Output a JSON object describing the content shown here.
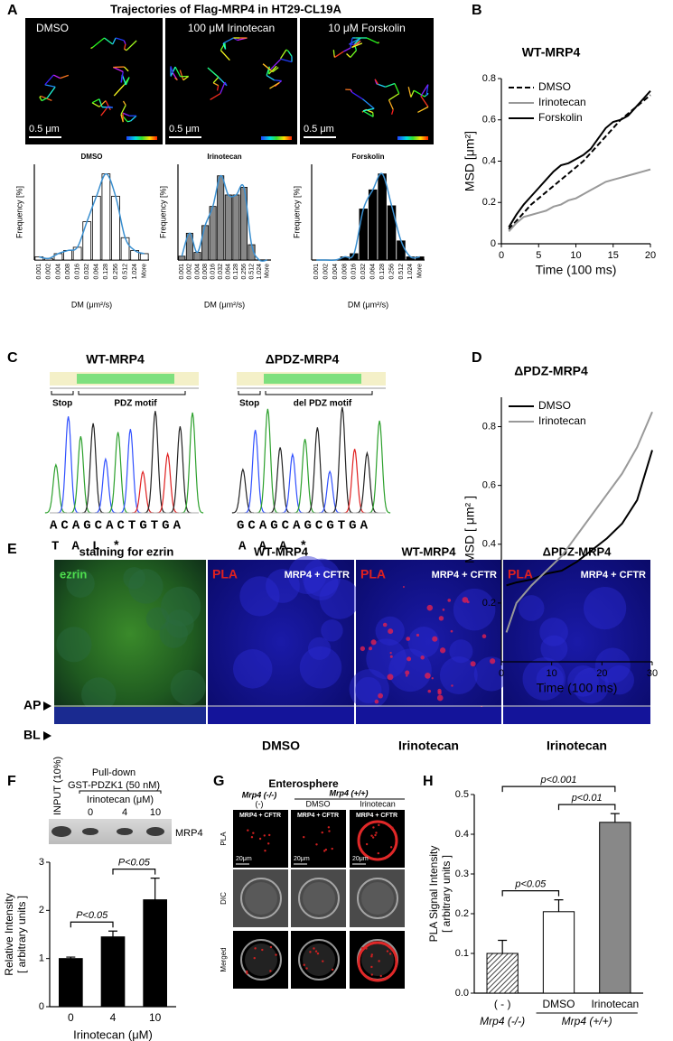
{
  "panel_labels": [
    "A",
    "B",
    "C",
    "D",
    "E",
    "F",
    "G",
    "H"
  ],
  "panel_a": {
    "title": "Trajectories of Flag-MRP4 in HT29-CL19A",
    "image_labels": [
      "DMSO",
      "100 μM Irinotecan",
      "10 μM Forskolin"
    ],
    "scale_bars": [
      "0.5 μm",
      "0.5 μm",
      "0.5 μm"
    ]
  },
  "panel_c": {
    "constructs": [
      {
        "name": "WT-MRP4",
        "regions": [
          "Stop",
          "PDZ motif"
        ],
        "sequence": "ACAGCACTGTGA",
        "translation": "T A L *"
      },
      {
        "name": "ΔPDZ-MRP4",
        "regions": [
          "Stop",
          "del PDZ motif"
        ],
        "sequence": "GCAGCAGCGTGA",
        "translation": "A A A *"
      }
    ]
  },
  "panel_e": {
    "heading": "staining for ezrin",
    "stain": "ezrin",
    "columns": [
      {
        "construct": "WT-MRP4",
        "assay": "PLA",
        "target": "MRP4 + CFTR",
        "treatment": "DMSO"
      },
      {
        "construct": "WT-MRP4",
        "assay": "PLA",
        "target": "MRP4 + CFTR",
        "treatment": "Irinotecan"
      },
      {
        "construct": "ΔPDZ-MRP4",
        "assay": "PLA",
        "target": "MRP4 + CFTR",
        "treatment": "Irinotecan"
      }
    ],
    "section_markers": [
      "AP",
      "BL"
    ]
  },
  "panel_f": {
    "input_lane": "INPUT (10%)",
    "pulldown": [
      "Pull-down",
      "GST-PDZK1 (50 nM)"
    ],
    "dose_title": "Irinotecan (μM)",
    "doses": [
      "0",
      "4",
      "10"
    ],
    "band": "MRP4"
  },
  "panel_g": {
    "title": "Enterosphere",
    "genotypes": [
      "Mrp4 (-/-)",
      "Mrp4 (+/+)"
    ],
    "conditions": [
      "(-)",
      "DMSO",
      "Irinotecan"
    ],
    "rows": [
      "PLA",
      "DIC",
      "Merged"
    ],
    "target": "MRP4 + CFTR",
    "scale_bar": "20μm"
  },
  "chart_data": [
    {
      "type": "bar",
      "title": "DMSO",
      "categories": [
        "0.001",
        "0.002",
        "0.004",
        "0.008",
        "0.016",
        "0.032",
        "0.064",
        "0.128",
        "0.256",
        "0.512",
        "1.024",
        "More"
      ],
      "values": [
        1,
        0.5,
        2,
        3,
        4,
        12,
        20,
        27,
        20,
        7,
        3,
        2
      ],
      "color": "#ffffff",
      "fit_color": "#3a8fd0",
      "xlabel": "DM (μm²/s)",
      "ylabel": "Frequency [%]",
      "ylim": [
        0,
        30
      ]
    },
    {
      "type": "bar",
      "title": "Irinotecan",
      "categories": [
        "0.001",
        "0.002",
        "0.004",
        "0.008",
        "0.016",
        "0.032",
        "0.064",
        "0.128",
        "0.256",
        "0.512",
        "1.024",
        "More"
      ],
      "values": [
        1,
        7,
        2,
        9,
        14,
        22,
        17,
        17,
        19,
        4,
        0,
        0
      ],
      "color": "#888888",
      "fit_color": "#3a8fd0",
      "xlabel": "DM (μm²/s)",
      "ylabel": "Frequency [%]",
      "ylim": [
        0,
        25
      ]
    },
    {
      "type": "bar",
      "title": "Forskolin",
      "categories": [
        "0.001",
        "0.002",
        "0.004",
        "0.008",
        "0.016",
        "0.032",
        "0.064",
        "0.128",
        "0.256",
        "0.512",
        "1.024",
        "More"
      ],
      "values": [
        0,
        0,
        0,
        1,
        2,
        16,
        22,
        27,
        17,
        6,
        1,
        1
      ],
      "color": "#000000",
      "fit_color": "#3a8fd0",
      "xlabel": "DM (μm²/s)",
      "ylabel": "Frequency [%]",
      "ylim": [
        0,
        30
      ]
    },
    {
      "type": "line",
      "title": "WT-MRP4",
      "x": [
        1,
        2,
        3,
        4,
        5,
        6,
        7,
        8,
        9,
        10,
        11,
        12,
        13,
        14,
        15,
        16,
        17,
        18,
        19,
        20
      ],
      "series": [
        {
          "name": "DMSO",
          "color": "#000000",
          "dash": true,
          "values": [
            0.07,
            0.11,
            0.15,
            0.19,
            0.22,
            0.25,
            0.28,
            0.31,
            0.34,
            0.37,
            0.4,
            0.44,
            0.48,
            0.52,
            0.56,
            0.6,
            0.63,
            0.66,
            0.69,
            0.72
          ]
        },
        {
          "name": "Irinotecan",
          "color": "#999999",
          "dash": false,
          "values": [
            0.06,
            0.1,
            0.13,
            0.14,
            0.15,
            0.16,
            0.18,
            0.19,
            0.21,
            0.22,
            0.24,
            0.26,
            0.28,
            0.3,
            0.31,
            0.32,
            0.33,
            0.34,
            0.35,
            0.36
          ]
        },
        {
          "name": "Forskolin",
          "color": "#000000",
          "dash": false,
          "values": [
            0.08,
            0.14,
            0.19,
            0.23,
            0.27,
            0.31,
            0.35,
            0.38,
            0.39,
            0.41,
            0.43,
            0.46,
            0.51,
            0.56,
            0.59,
            0.6,
            0.62,
            0.66,
            0.7,
            0.74
          ]
        }
      ],
      "xlabel": "Time (100 ms)",
      "ylabel": "MSD [μm²]",
      "xlim": [
        0,
        20
      ],
      "xticks": [
        0,
        5,
        10,
        15,
        20
      ],
      "ylim": [
        0,
        0.8
      ],
      "yticks": [
        0,
        0.2,
        0.4,
        0.6,
        0.8
      ],
      "legend": "upper left"
    },
    {
      "type": "line",
      "title": "ΔPDZ-MRP4",
      "x": [
        1,
        3,
        6,
        9,
        12,
        15,
        18,
        21,
        24,
        27,
        30
      ],
      "series": [
        {
          "name": "DMSO",
          "color": "#000000",
          "dash": false,
          "values": [
            0.26,
            0.27,
            0.28,
            0.3,
            0.31,
            0.34,
            0.38,
            0.42,
            0.47,
            0.55,
            0.72
          ]
        },
        {
          "name": "Irinotecan",
          "color": "#999999",
          "dash": false,
          "values": [
            0.1,
            0.2,
            0.26,
            0.31,
            0.36,
            0.43,
            0.5,
            0.57,
            0.64,
            0.73,
            0.85
          ]
        }
      ],
      "xlabel": "Time (100 ms)",
      "ylabel": "MSD [ μm² ]",
      "xlim": [
        0,
        30
      ],
      "xticks": [
        0,
        10,
        20,
        30
      ],
      "ylim": [
        0,
        0.9
      ],
      "yticks": [
        0.2,
        0.4,
        0.6,
        0.8
      ],
      "legend": "upper left"
    },
    {
      "type": "bar_error",
      "categories": [
        "0",
        "4",
        "10"
      ],
      "values": [
        1.0,
        1.45,
        2.22
      ],
      "errors": [
        0.03,
        0.12,
        0.45
      ],
      "color": "#000000",
      "xlabel": "Irinotecan (μM)",
      "ylabel": [
        "Relative Intensity",
        "[ arbitrary units ]"
      ],
      "ylim": [
        0,
        3
      ],
      "yticks": [
        0,
        1,
        2,
        3
      ],
      "annotations": [
        {
          "text": "P<0.05",
          "pair": [
            0,
            1
          ]
        },
        {
          "text": "P<0.05",
          "pair": [
            1,
            2
          ]
        }
      ]
    },
    {
      "type": "bar_error",
      "categories": [
        "( - )",
        "DMSO",
        "Irinotecan"
      ],
      "values": [
        0.1,
        0.205,
        0.43
      ],
      "errors": [
        0.033,
        0.03,
        0.022
      ],
      "colors": [
        "hatch",
        "#ffffff",
        "#888888"
      ],
      "ylabel": [
        "PLA Signal Intensity",
        "[ arbitrary units ]"
      ],
      "ylim": [
        0,
        0.5
      ],
      "yticks": [
        {
          "value": 0,
          "label": "0.0"
        },
        0.1,
        0.2,
        0.3,
        0.4,
        0.5
      ],
      "annotations": [
        {
          "text": "p<0.05",
          "pair": [
            0,
            1
          ]
        },
        {
          "text": "p<0.01",
          "pair": [
            1,
            2
          ]
        },
        {
          "text": "p<0.001",
          "pair": [
            0,
            2
          ]
        }
      ],
      "groups": [
        {
          "label": "Mrp4 (-/-)",
          "categories": [
            0
          ]
        },
        {
          "label": "Mrp4 (+/+)",
          "categories": [
            1,
            2
          ]
        }
      ]
    }
  ]
}
